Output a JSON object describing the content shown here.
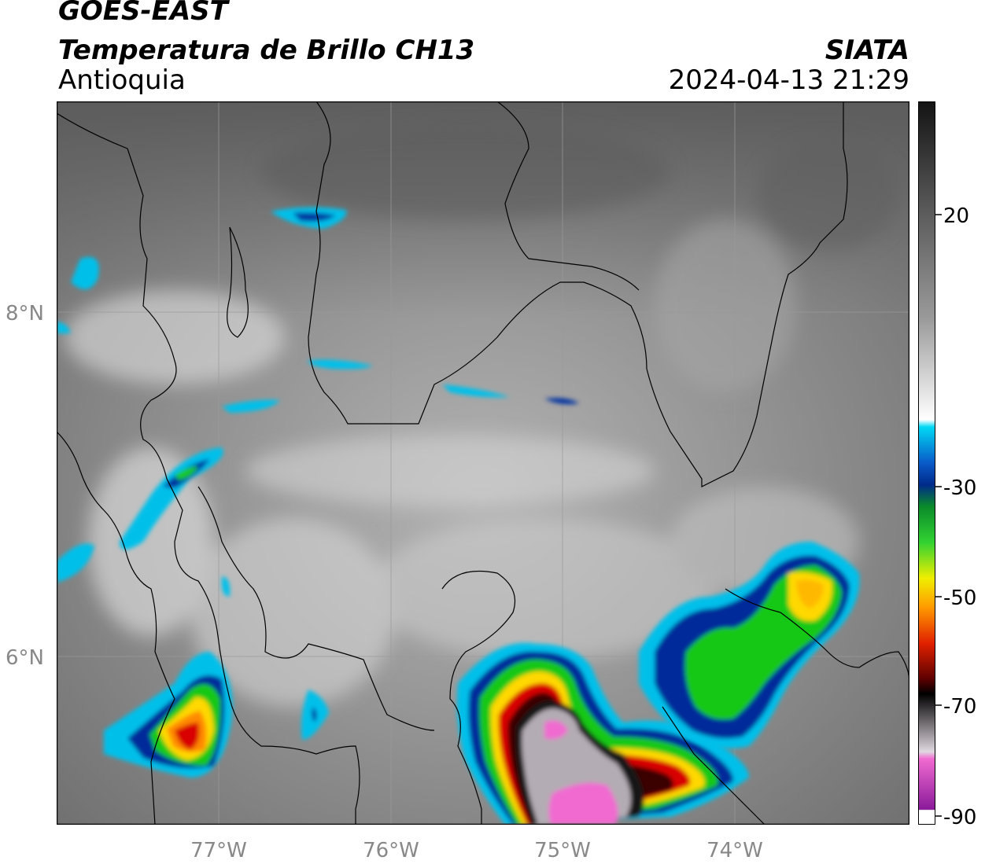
{
  "header": {
    "title": "GOES-EAST",
    "subtitle": "Temperatura de Brillo CH13",
    "region": "Antioquia",
    "organization": "SIATA",
    "datetime": "2024-04-13 21:29"
  },
  "map": {
    "longitude_labels": [
      "77°W",
      "76°W",
      "75°W",
      "74°W"
    ],
    "latitude_labels": [
      "8°N",
      "6°N"
    ],
    "gridlines": true
  },
  "colorbar": {
    "tick_labels": [
      "20",
      "-30",
      "-50",
      "-70",
      "-90"
    ],
    "range": [
      -90,
      30
    ],
    "palette": {
      "warm_grey_high": "#1a1a1a",
      "grey_mid": "#808080",
      "white": "#ffffff",
      "cyan": "#00c8f0",
      "blue": "#002a9a",
      "green": "#14c814",
      "yellow": "#ffee00",
      "orange": "#ff8a00",
      "red": "#d80000",
      "dark_red": "#400000",
      "black": "#000000",
      "light_grey": "#d8d0d8",
      "pink": "#f06ad0",
      "purple": "#8a1a9a"
    }
  }
}
